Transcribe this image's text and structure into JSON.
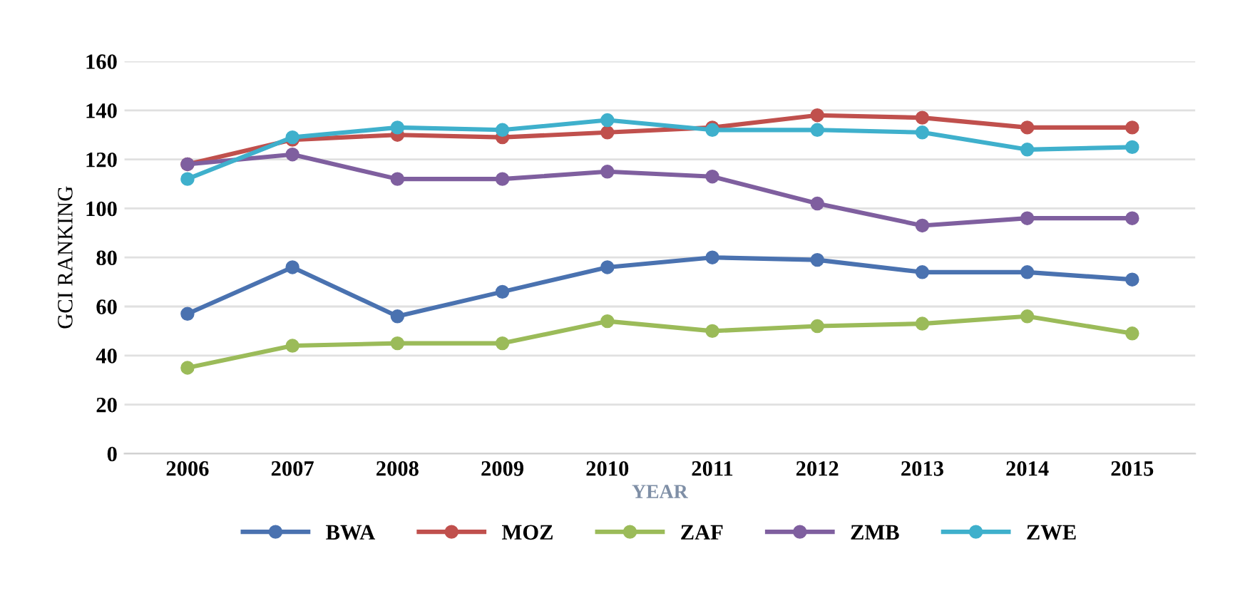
{
  "chart_data": {
    "type": "line",
    "xlabel": "YEAR",
    "ylabel": "GCI RANKING",
    "categories": [
      "2006",
      "2007",
      "2008",
      "2009",
      "2010",
      "2011",
      "2012",
      "2013",
      "2014",
      "2015"
    ],
    "series": [
      {
        "name": "BWA",
        "color": "#4a72b0",
        "values": [
          57,
          76,
          56,
          66,
          76,
          80,
          79,
          74,
          74,
          71
        ]
      },
      {
        "name": "MOZ",
        "color": "#c0504d",
        "values": [
          118,
          128,
          130,
          129,
          131,
          133,
          138,
          137,
          133,
          133
        ]
      },
      {
        "name": "ZAF",
        "color": "#9bbb59",
        "values": [
          35,
          44,
          45,
          45,
          54,
          50,
          52,
          53,
          56,
          49
        ]
      },
      {
        "name": "ZMB",
        "color": "#7f5f9f",
        "values": [
          118,
          122,
          112,
          112,
          115,
          113,
          102,
          93,
          96,
          96
        ]
      },
      {
        "name": "ZWE",
        "color": "#3fb0cc",
        "values": [
          112,
          129,
          133,
          132,
          136,
          132,
          132,
          131,
          124,
          125
        ]
      }
    ],
    "ylim": [
      0,
      160
    ],
    "yticks": [
      0,
      20,
      40,
      60,
      80,
      100,
      120,
      140,
      160
    ],
    "grid": "y",
    "legend": "bottom",
    "marker": "circle",
    "line_style": "solid"
  }
}
